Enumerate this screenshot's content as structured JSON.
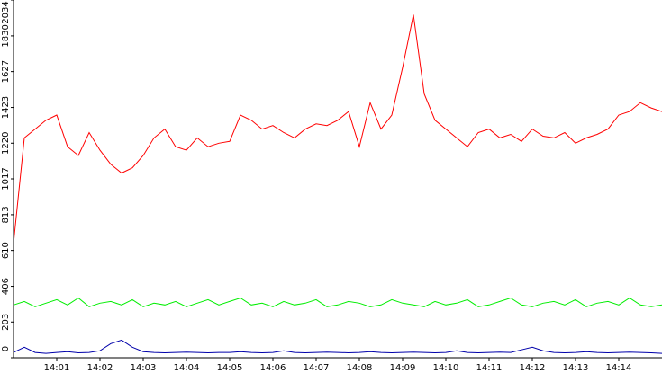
{
  "chart_data": {
    "type": "line",
    "categories": [
      null,
      null,
      null,
      null,
      "14:01",
      null,
      null,
      null,
      "14:02",
      null,
      null,
      null,
      "14:03",
      null,
      null,
      null,
      "14:04",
      null,
      null,
      null,
      "14:05",
      null,
      null,
      null,
      "14:06",
      null,
      null,
      null,
      "14:07",
      null,
      null,
      null,
      "14:08",
      null,
      null,
      null,
      "14:09",
      null,
      null,
      null,
      "14:10",
      null,
      null,
      null,
      "14:11",
      null,
      null,
      null,
      "14:12",
      null,
      null,
      null,
      "14:13",
      null,
      null,
      null,
      "14:14",
      null,
      null,
      null,
      null
    ],
    "ylim": [
      0,
      2034
    ],
    "yticks": [
      0,
      203,
      406,
      610,
      813,
      1017,
      1220,
      1423,
      1627,
      1830,
      2034
    ],
    "series": [
      {
        "color": "#ff0000",
        "values": [
          650,
          1250,
          1300,
          1350,
          1380,
          1200,
          1150,
          1280,
          1180,
          1100,
          1050,
          1080,
          1150,
          1250,
          1300,
          1200,
          1180,
          1250,
          1200,
          1220,
          1230,
          1380,
          1350,
          1300,
          1320,
          1280,
          1250,
          1300,
          1330,
          1320,
          1350,
          1400,
          1200,
          1450,
          1300,
          1380,
          1650,
          1950,
          1500,
          1350,
          1300,
          1250,
          1200,
          1280,
          1300,
          1250,
          1270,
          1230,
          1300,
          1260,
          1250,
          1280,
          1220,
          1250,
          1270,
          1300,
          1380,
          1400,
          1450,
          1420,
          1400
        ]
      },
      {
        "color": "#00ee00",
        "values": [
          300,
          320,
          290,
          310,
          330,
          300,
          340,
          290,
          310,
          320,
          300,
          330,
          290,
          310,
          300,
          320,
          290,
          310,
          330,
          300,
          320,
          340,
          300,
          310,
          290,
          320,
          300,
          310,
          330,
          290,
          300,
          320,
          310,
          290,
          300,
          330,
          310,
          300,
          290,
          320,
          300,
          310,
          330,
          290,
          300,
          320,
          340,
          300,
          290,
          310,
          320,
          300,
          330,
          290,
          310,
          320,
          300,
          340,
          300,
          290,
          300
        ]
      },
      {
        "color": "#0000aa",
        "values": [
          30,
          60,
          30,
          25,
          30,
          35,
          28,
          30,
          40,
          80,
          100,
          60,
          35,
          30,
          28,
          30,
          32,
          30,
          28,
          30,
          30,
          35,
          30,
          28,
          30,
          40,
          30,
          28,
          30,
          32,
          30,
          28,
          30,
          35,
          30,
          28,
          30,
          32,
          30,
          28,
          30,
          40,
          30,
          28,
          30,
          32,
          30,
          45,
          60,
          40,
          30,
          28,
          30,
          35,
          30,
          28,
          30,
          32,
          30,
          28,
          25
        ]
      }
    ]
  }
}
